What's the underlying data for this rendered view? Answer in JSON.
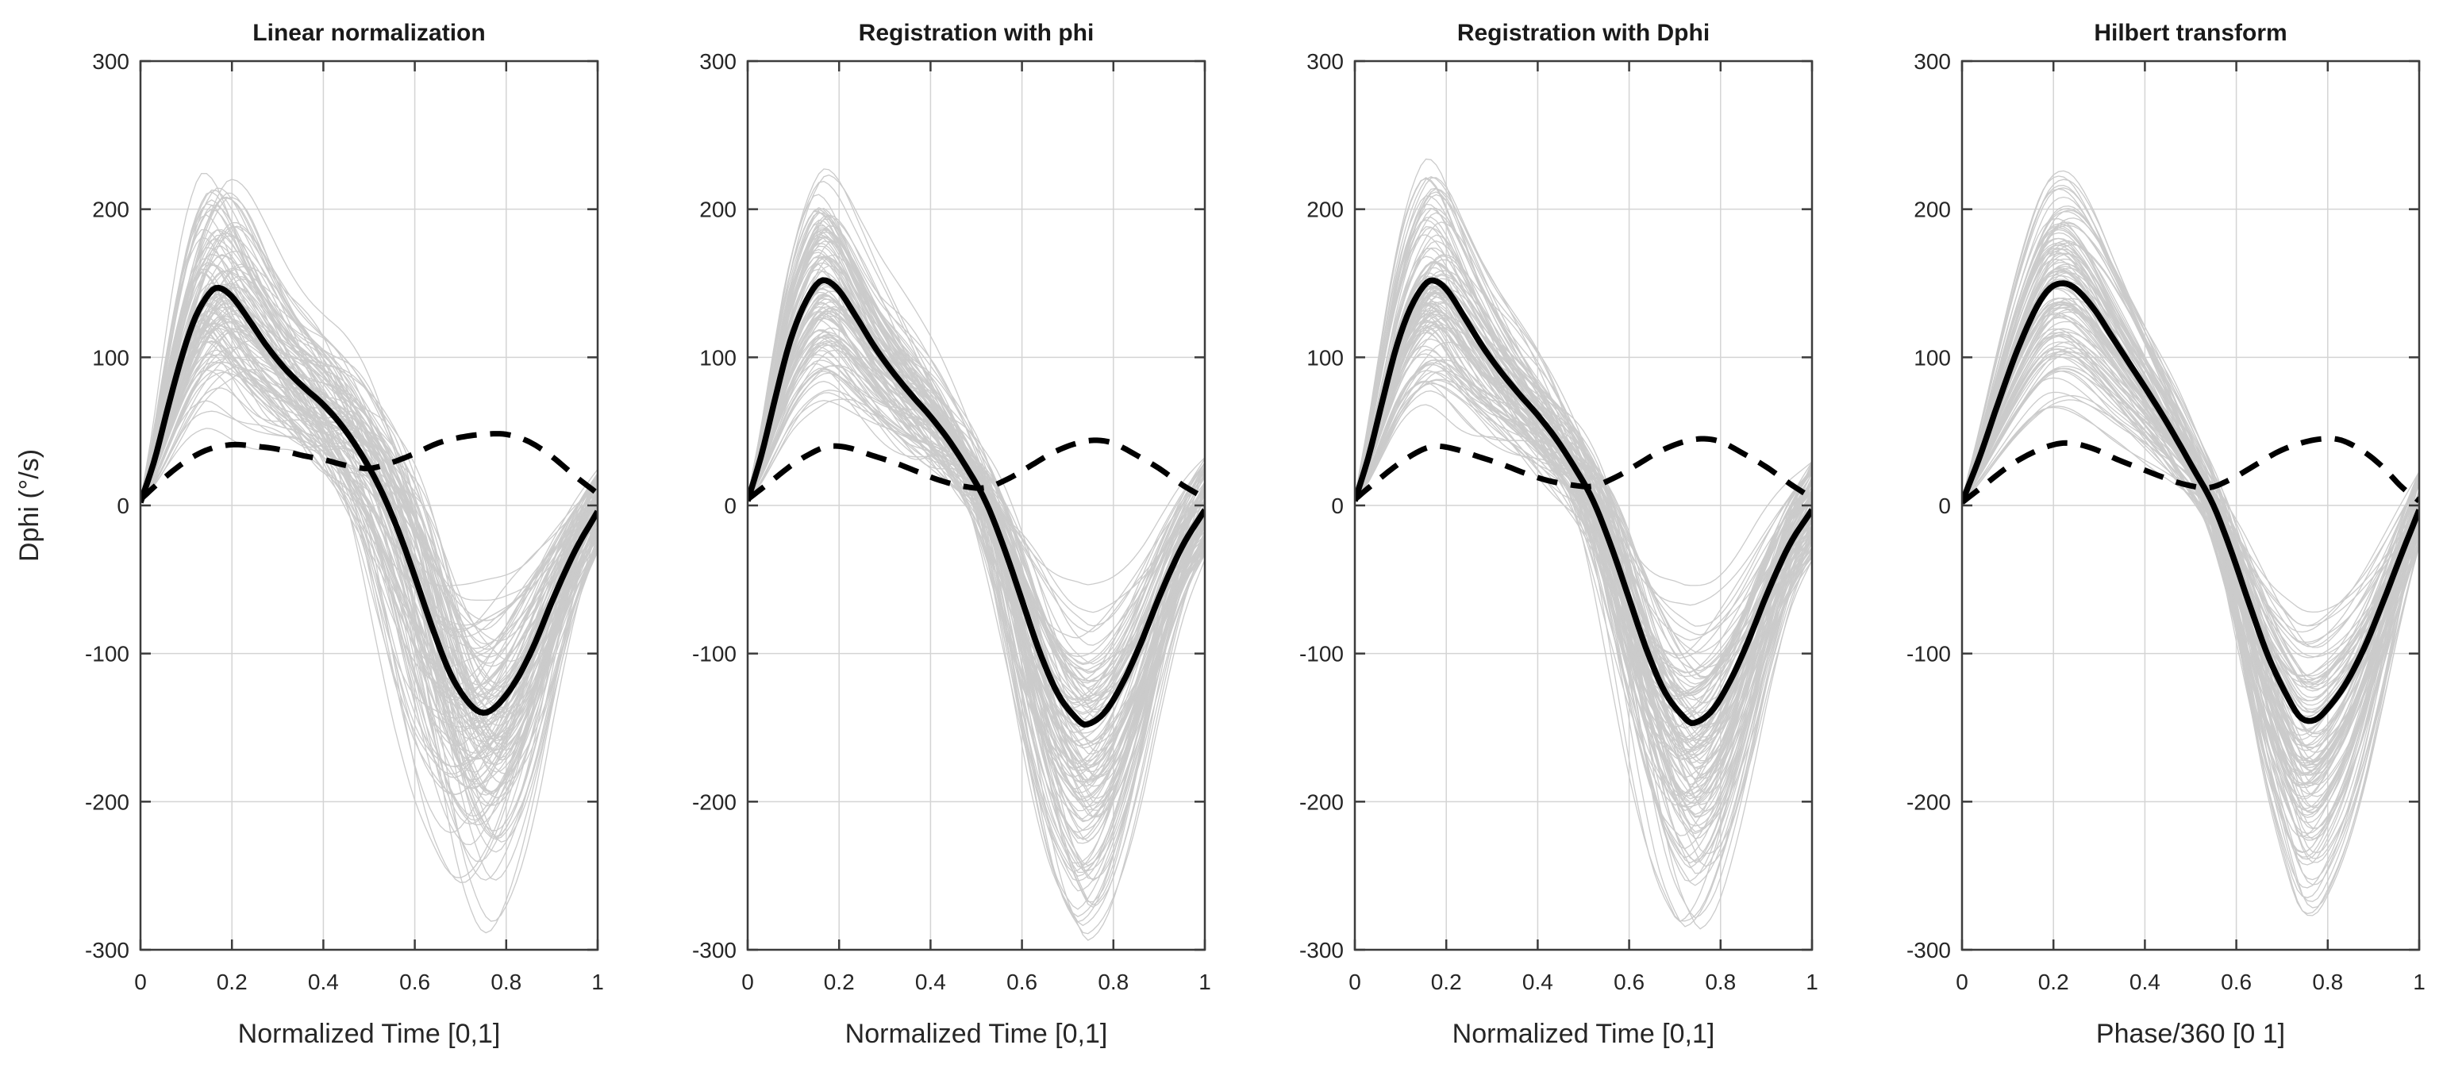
{
  "figure": {
    "background": "#ffffff",
    "axis_color": "#3c3c3c",
    "tick_label_color": "#262626",
    "grid_color": "#d4d4d4",
    "trial_color": "#cbcbcb",
    "mean_color": "#000000",
    "std_color": "#000000"
  },
  "chart_data": {
    "type": "line",
    "ylabel": "Dphi (°/s)",
    "ylim": [
      -300,
      300
    ],
    "xlim": [
      0,
      1
    ],
    "grid": true,
    "legend": "none",
    "yticks": [
      300,
      200,
      100,
      0,
      -100,
      -200,
      -300
    ],
    "ytick_labels": [
      "300",
      "200",
      "100",
      "0",
      "-100",
      "-200",
      "-300"
    ],
    "xticks": [
      0,
      0.2,
      0.4,
      0.6,
      0.8,
      1
    ],
    "xtick_labels": [
      "0",
      "0.2",
      "0.4",
      "0.6",
      "0.8",
      "1"
    ],
    "subplots": [
      {
        "title": "Linear normalization",
        "xlabel": "Normalized Time [0,1]",
        "trials": {
          "name": "individual_trials",
          "style": "thin-gray",
          "count": 115,
          "seed": 7,
          "time_jitter": 0.09,
          "noise_amp": 8,
          "end_spread": 28,
          "amp_pos": [
            0.33,
            1.6
          ],
          "neg_factor": [
            0.95,
            1.45
          ],
          "neg_cap": 1.98,
          "envelope_peak": 237,
          "envelope_min": -280
        },
        "mean": {
          "name": "mean",
          "style": "solid-black",
          "points": [
            [
              0,
              2
            ],
            [
              0.03,
              30
            ],
            [
              0.06,
              66
            ],
            [
              0.09,
              100
            ],
            [
              0.12,
              127
            ],
            [
              0.15,
              143
            ],
            [
              0.17,
              147
            ],
            [
              0.2,
              141
            ],
            [
              0.24,
              124
            ],
            [
              0.28,
              106
            ],
            [
              0.32,
              91
            ],
            [
              0.36,
              79
            ],
            [
              0.4,
              68
            ],
            [
              0.44,
              54
            ],
            [
              0.48,
              36
            ],
            [
              0.52,
              14
            ],
            [
              0.56,
              -14
            ],
            [
              0.6,
              -48
            ],
            [
              0.64,
              -84
            ],
            [
              0.68,
              -115
            ],
            [
              0.72,
              -134
            ],
            [
              0.75,
              -140
            ],
            [
              0.78,
              -135
            ],
            [
              0.82,
              -119
            ],
            [
              0.86,
              -95
            ],
            [
              0.9,
              -65
            ],
            [
              0.95,
              -31
            ],
            [
              1,
              -4
            ]
          ]
        },
        "std": {
          "name": "std",
          "style": "dashed-black",
          "points": [
            [
              0,
              4
            ],
            [
              0.05,
              18
            ],
            [
              0.1,
              30
            ],
            [
              0.15,
              38
            ],
            [
              0.2,
              41
            ],
            [
              0.25,
              40
            ],
            [
              0.3,
              38
            ],
            [
              0.35,
              34
            ],
            [
              0.4,
              31
            ],
            [
              0.45,
              27
            ],
            [
              0.5,
              25
            ],
            [
              0.55,
              29
            ],
            [
              0.6,
              35
            ],
            [
              0.65,
              42
            ],
            [
              0.7,
              46
            ],
            [
              0.75,
              48
            ],
            [
              0.8,
              48
            ],
            [
              0.85,
              43
            ],
            [
              0.9,
              33
            ],
            [
              0.95,
              20
            ],
            [
              1,
              8
            ]
          ]
        }
      },
      {
        "title": "Registration with phi",
        "xlabel": "Normalized Time [0,1]",
        "trials": {
          "name": "individual_trials",
          "style": "thin-gray",
          "count": 115,
          "seed": 13,
          "time_jitter": 0.035,
          "noise_amp": 7,
          "end_spread": 34,
          "amp_pos": [
            0.32,
            1.58
          ],
          "neg_factor": [
            1.0,
            1.5
          ],
          "neg_cap": 1.92,
          "envelope_peak": 240,
          "envelope_min": -285
        },
        "mean": {
          "name": "mean",
          "style": "solid-black",
          "points": [
            [
              0,
              3
            ],
            [
              0.03,
              34
            ],
            [
              0.06,
              72
            ],
            [
              0.09,
              108
            ],
            [
              0.12,
              133
            ],
            [
              0.15,
              149
            ],
            [
              0.17,
              152
            ],
            [
              0.2,
              145
            ],
            [
              0.24,
              126
            ],
            [
              0.28,
              106
            ],
            [
              0.32,
              89
            ],
            [
              0.36,
              74
            ],
            [
              0.4,
              60
            ],
            [
              0.44,
              44
            ],
            [
              0.48,
              25
            ],
            [
              0.52,
              3
            ],
            [
              0.56,
              -28
            ],
            [
              0.6,
              -64
            ],
            [
              0.64,
              -100
            ],
            [
              0.68,
              -128
            ],
            [
              0.72,
              -144
            ],
            [
              0.74,
              -148
            ],
            [
              0.78,
              -140
            ],
            [
              0.82,
              -120
            ],
            [
              0.86,
              -93
            ],
            [
              0.9,
              -62
            ],
            [
              0.95,
              -28
            ],
            [
              1,
              -3
            ]
          ]
        },
        "std": {
          "name": "std",
          "style": "dashed-black",
          "points": [
            [
              0,
              4
            ],
            [
              0.05,
              16
            ],
            [
              0.1,
              28
            ],
            [
              0.15,
              37
            ],
            [
              0.18,
              40
            ],
            [
              0.22,
              39
            ],
            [
              0.27,
              34
            ],
            [
              0.32,
              29
            ],
            [
              0.37,
              23
            ],
            [
              0.42,
              17
            ],
            [
              0.47,
              13
            ],
            [
              0.52,
              12
            ],
            [
              0.57,
              18
            ],
            [
              0.62,
              27
            ],
            [
              0.67,
              36
            ],
            [
              0.72,
              42
            ],
            [
              0.76,
              44
            ],
            [
              0.8,
              42
            ],
            [
              0.85,
              34
            ],
            [
              0.9,
              25
            ],
            [
              0.95,
              14
            ],
            [
              1,
              5
            ]
          ]
        }
      },
      {
        "title": "Registration with Dphi",
        "xlabel": "Normalized Time [0,1]",
        "trials": {
          "name": "individual_trials",
          "style": "thin-gray",
          "count": 115,
          "seed": 21,
          "time_jitter": 0.04,
          "noise_amp": 7,
          "end_spread": 34,
          "amp_pos": [
            0.32,
            1.57
          ],
          "neg_factor": [
            1.0,
            1.5
          ],
          "neg_cap": 1.92,
          "envelope_peak": 237,
          "envelope_min": -285
        },
        "mean": {
          "name": "mean",
          "style": "solid-black",
          "points": [
            [
              0,
              3
            ],
            [
              0.03,
              33
            ],
            [
              0.06,
              70
            ],
            [
              0.09,
              106
            ],
            [
              0.12,
              132
            ],
            [
              0.15,
              148
            ],
            [
              0.17,
              152
            ],
            [
              0.2,
              146
            ],
            [
              0.24,
              127
            ],
            [
              0.28,
              107
            ],
            [
              0.32,
              90
            ],
            [
              0.36,
              75
            ],
            [
              0.4,
              61
            ],
            [
              0.44,
              45
            ],
            [
              0.48,
              26
            ],
            [
              0.52,
              4
            ],
            [
              0.56,
              -27
            ],
            [
              0.6,
              -63
            ],
            [
              0.64,
              -99
            ],
            [
              0.68,
              -127
            ],
            [
              0.72,
              -143
            ],
            [
              0.74,
              -147
            ],
            [
              0.78,
              -139
            ],
            [
              0.82,
              -119
            ],
            [
              0.86,
              -92
            ],
            [
              0.9,
              -61
            ],
            [
              0.95,
              -27
            ],
            [
              1,
              -3
            ]
          ]
        },
        "std": {
          "name": "std",
          "style": "dashed-black",
          "points": [
            [
              0,
              4
            ],
            [
              0.05,
              17
            ],
            [
              0.1,
              29
            ],
            [
              0.15,
              38
            ],
            [
              0.18,
              40
            ],
            [
              0.22,
              38
            ],
            [
              0.27,
              33
            ],
            [
              0.32,
              28
            ],
            [
              0.37,
              22
            ],
            [
              0.42,
              17
            ],
            [
              0.47,
              14
            ],
            [
              0.52,
              13
            ],
            [
              0.57,
              19
            ],
            [
              0.62,
              28
            ],
            [
              0.67,
              37
            ],
            [
              0.72,
              43
            ],
            [
              0.76,
              45
            ],
            [
              0.8,
              43
            ],
            [
              0.85,
              35
            ],
            [
              0.9,
              26
            ],
            [
              0.95,
              15
            ],
            [
              1,
              5
            ]
          ]
        }
      },
      {
        "title": "Hilbert transform",
        "xlabel": "Phase/360 [0 1]",
        "trials": {
          "name": "individual_trials",
          "style": "thin-gray",
          "count": 110,
          "seed": 42,
          "time_jitter": 0.025,
          "noise_amp": 2.5,
          "end_spread": 26,
          "amp_pos": [
            0.35,
            1.58
          ],
          "neg_factor": [
            1.0,
            1.45
          ],
          "neg_cap": 1.85,
          "envelope_peak": 237,
          "envelope_min": -270
        },
        "mean": {
          "name": "mean",
          "style": "solid-black",
          "points": [
            [
              0,
              2
            ],
            [
              0.04,
              34
            ],
            [
              0.08,
              70
            ],
            [
              0.12,
              104
            ],
            [
              0.16,
              132
            ],
            [
              0.19,
              146
            ],
            [
              0.22,
              150
            ],
            [
              0.25,
              146
            ],
            [
              0.29,
              132
            ],
            [
              0.33,
              113
            ],
            [
              0.37,
              94
            ],
            [
              0.41,
              75
            ],
            [
              0.45,
              55
            ],
            [
              0.5,
              28
            ],
            [
              0.55,
              0
            ],
            [
              0.59,
              -32
            ],
            [
              0.63,
              -68
            ],
            [
              0.67,
              -102
            ],
            [
              0.71,
              -128
            ],
            [
              0.74,
              -143
            ],
            [
              0.77,
              -145
            ],
            [
              0.8,
              -137
            ],
            [
              0.84,
              -120
            ],
            [
              0.88,
              -96
            ],
            [
              0.92,
              -66
            ],
            [
              0.96,
              -34
            ],
            [
              1,
              -3
            ]
          ]
        },
        "std": {
          "name": "std",
          "style": "dashed-black",
          "points": [
            [
              0,
              2
            ],
            [
              0.05,
              14
            ],
            [
              0.1,
              26
            ],
            [
              0.15,
              35
            ],
            [
              0.2,
              41
            ],
            [
              0.24,
              42
            ],
            [
              0.29,
              38
            ],
            [
              0.34,
              31
            ],
            [
              0.39,
              25
            ],
            [
              0.44,
              19
            ],
            [
              0.49,
              14
            ],
            [
              0.54,
              12
            ],
            [
              0.59,
              18
            ],
            [
              0.64,
              27
            ],
            [
              0.69,
              36
            ],
            [
              0.74,
              42
            ],
            [
              0.79,
              45
            ],
            [
              0.83,
              44
            ],
            [
              0.88,
              36
            ],
            [
              0.92,
              26
            ],
            [
              0.96,
              13
            ],
            [
              1,
              3
            ]
          ]
        }
      }
    ]
  }
}
